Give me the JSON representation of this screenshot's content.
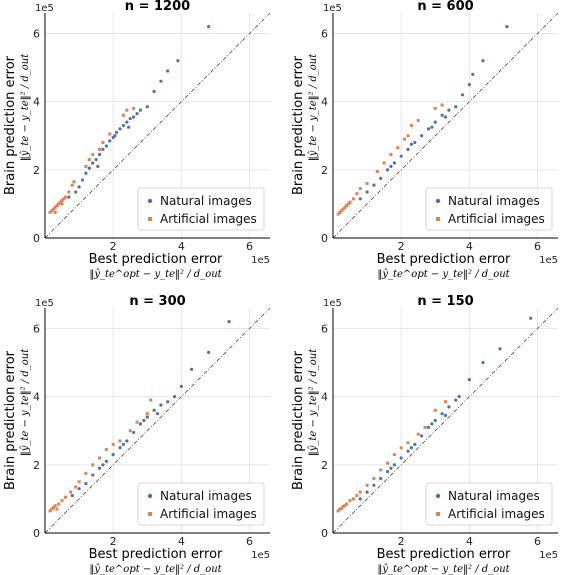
{
  "colors": {
    "natural": "#4c72b0",
    "artificial": "#dd8452",
    "grid": "#e6e6e6",
    "diag": "#444444"
  },
  "chart_data": [
    {
      "type": "scatter",
      "title": "n = 1200",
      "xlabel": "Best prediction error",
      "xformula": "‖ŷ_te^opt − y_te‖² / d_out",
      "ylabel": "Brain prediction error",
      "yformula": "‖ŷ_te − y_te‖² / d_out",
      "x_scale_label": "1e5",
      "y_scale_label": "1e5",
      "xlim": [
        0,
        6.6
      ],
      "ylim": [
        0,
        6.6
      ],
      "xticks": [
        0,
        2,
        4,
        6
      ],
      "yticks": [
        0,
        2,
        4,
        6
      ],
      "grid": true,
      "legend_position": "bottom-right",
      "diagonal": true,
      "series": [
        {
          "name": "Natural images",
          "color_key": "natural",
          "points": [
            [
              0.7,
              1.2
            ],
            [
              0.9,
              1.35
            ],
            [
              1.0,
              1.5
            ],
            [
              1.1,
              1.7
            ],
            [
              1.2,
              1.9
            ],
            [
              1.3,
              2.05
            ],
            [
              1.4,
              2.2
            ],
            [
              1.5,
              2.3
            ],
            [
              1.6,
              2.45
            ],
            [
              1.7,
              2.6
            ],
            [
              1.8,
              2.7
            ],
            [
              1.9,
              2.85
            ],
            [
              2.0,
              2.95
            ],
            [
              2.1,
              3.1
            ],
            [
              2.2,
              3.2
            ],
            [
              2.3,
              3.3
            ],
            [
              2.4,
              3.4
            ],
            [
              2.5,
              3.5
            ],
            [
              2.6,
              3.55
            ],
            [
              2.7,
              3.65
            ],
            [
              2.8,
              3.75
            ],
            [
              3.0,
              3.85
            ],
            [
              3.2,
              4.3
            ],
            [
              3.4,
              4.6
            ],
            [
              3.6,
              4.9
            ],
            [
              3.9,
              5.2
            ],
            [
              4.8,
              6.2
            ],
            [
              1.55,
              2.1
            ],
            [
              2.05,
              3.0
            ],
            [
              2.45,
              3.25
            ]
          ]
        },
        {
          "name": "Artificial images",
          "color_key": "artificial",
          "points": [
            [
              0.15,
              0.75
            ],
            [
              0.2,
              0.8
            ],
            [
              0.25,
              0.85
            ],
            [
              0.3,
              0.9
            ],
            [
              0.35,
              0.95
            ],
            [
              0.4,
              1.0
            ],
            [
              0.45,
              1.05
            ],
            [
              0.5,
              1.1
            ],
            [
              0.55,
              1.15
            ],
            [
              0.6,
              1.2
            ],
            [
              0.7,
              1.35
            ],
            [
              0.8,
              1.55
            ],
            [
              0.85,
              1.65
            ],
            [
              1.2,
              2.1
            ],
            [
              1.3,
              2.3
            ],
            [
              1.4,
              2.45
            ],
            [
              1.6,
              2.6
            ],
            [
              1.7,
              2.8
            ],
            [
              1.9,
              3.05
            ],
            [
              2.3,
              3.6
            ],
            [
              2.4,
              3.75
            ],
            [
              2.6,
              3.8
            ],
            [
              0.3,
              0.75
            ],
            [
              0.5,
              1.0
            ]
          ]
        }
      ]
    },
    {
      "type": "scatter",
      "title": "n = 600",
      "xlabel": "Best prediction error",
      "xformula": "‖ŷ_te^opt − y_te‖² / d_out",
      "ylabel": "Brain prediction error",
      "yformula": "‖ŷ_te − y_te‖² / d_out",
      "x_scale_label": "1e5",
      "y_scale_label": "1e5",
      "xlim": [
        0,
        6.6
      ],
      "ylim": [
        0,
        6.6
      ],
      "xticks": [
        0,
        2,
        4,
        6
      ],
      "yticks": [
        0,
        2,
        4,
        6
      ],
      "grid": true,
      "legend_position": "bottom-right",
      "diagonal": true,
      "series": [
        {
          "name": "Natural images",
          "color_key": "natural",
          "points": [
            [
              0.8,
              1.15
            ],
            [
              1.0,
              1.35
            ],
            [
              1.2,
              1.55
            ],
            [
              1.4,
              1.75
            ],
            [
              1.6,
              2.0
            ],
            [
              1.8,
              2.2
            ],
            [
              2.0,
              2.4
            ],
            [
              2.2,
              2.6
            ],
            [
              2.4,
              2.8
            ],
            [
              2.6,
              3.0
            ],
            [
              2.8,
              3.2
            ],
            [
              3.0,
              3.4
            ],
            [
              3.2,
              3.6
            ],
            [
              3.4,
              3.75
            ],
            [
              3.6,
              3.85
            ],
            [
              3.8,
              4.2
            ],
            [
              4.0,
              4.5
            ],
            [
              4.1,
              4.8
            ],
            [
              4.4,
              5.2
            ],
            [
              5.1,
              6.2
            ],
            [
              1.7,
              2.1
            ],
            [
              2.3,
              2.75
            ],
            [
              2.9,
              3.25
            ],
            [
              3.3,
              3.55
            ]
          ]
        },
        {
          "name": "Artificial images",
          "color_key": "artificial",
          "points": [
            [
              0.15,
              0.7
            ],
            [
              0.2,
              0.75
            ],
            [
              0.25,
              0.8
            ],
            [
              0.3,
              0.85
            ],
            [
              0.35,
              0.9
            ],
            [
              0.4,
              0.95
            ],
            [
              0.5,
              1.05
            ],
            [
              0.6,
              1.15
            ],
            [
              0.7,
              1.3
            ],
            [
              0.8,
              1.45
            ],
            [
              1.0,
              1.6
            ],
            [
              1.3,
              1.95
            ],
            [
              1.5,
              2.2
            ],
            [
              1.7,
              2.45
            ],
            [
              1.9,
              2.65
            ],
            [
              2.1,
              2.9
            ],
            [
              2.2,
              3.0
            ],
            [
              2.3,
              3.3
            ],
            [
              2.5,
              3.45
            ],
            [
              3.0,
              3.8
            ],
            [
              3.2,
              3.9
            ],
            [
              0.45,
              1.0
            ]
          ]
        }
      ]
    },
    {
      "type": "scatter",
      "title": "n = 300",
      "xlabel": "Best prediction error",
      "xformula": "‖ŷ_te^opt − y_te‖² / d_out",
      "ylabel": "Brain prediction error",
      "yformula": "‖ŷ_te − y_te‖² / d_out",
      "x_scale_label": "1e5",
      "y_scale_label": "1e5",
      "xlim": [
        0,
        6.6
      ],
      "ylim": [
        0,
        6.6
      ],
      "xticks": [
        0,
        2,
        4,
        6
      ],
      "yticks": [
        0,
        2,
        4,
        6
      ],
      "grid": true,
      "legend_position": "bottom-right",
      "diagonal": true,
      "series": [
        {
          "name": "Natural images",
          "color_key": "natural",
          "points": [
            [
              0.8,
              1.1
            ],
            [
              1.0,
              1.3
            ],
            [
              1.2,
              1.45
            ],
            [
              1.4,
              1.7
            ],
            [
              1.6,
              1.9
            ],
            [
              1.8,
              2.1
            ],
            [
              2.0,
              2.3
            ],
            [
              2.2,
              2.5
            ],
            [
              2.4,
              2.7
            ],
            [
              2.6,
              2.95
            ],
            [
              2.8,
              3.2
            ],
            [
              3.0,
              3.4
            ],
            [
              3.2,
              3.6
            ],
            [
              3.4,
              3.75
            ],
            [
              3.6,
              3.85
            ],
            [
              3.8,
              4.0
            ],
            [
              4.0,
              4.3
            ],
            [
              4.3,
              4.8
            ],
            [
              4.8,
              5.3
            ],
            [
              5.4,
              6.2
            ],
            [
              1.7,
              2.0
            ],
            [
              2.3,
              2.6
            ],
            [
              2.9,
              3.3
            ],
            [
              3.3,
              3.5
            ]
          ]
        },
        {
          "name": "Artificial images",
          "color_key": "artificial",
          "points": [
            [
              0.15,
              0.65
            ],
            [
              0.2,
              0.7
            ],
            [
              0.25,
              0.75
            ],
            [
              0.3,
              0.8
            ],
            [
              0.4,
              0.85
            ],
            [
              0.5,
              0.95
            ],
            [
              0.6,
              1.05
            ],
            [
              0.75,
              1.2
            ],
            [
              0.9,
              1.35
            ],
            [
              1.0,
              1.5
            ],
            [
              1.2,
              1.75
            ],
            [
              1.4,
              2.0
            ],
            [
              1.6,
              2.2
            ],
            [
              1.8,
              2.45
            ],
            [
              2.0,
              2.6
            ],
            [
              2.2,
              2.7
            ],
            [
              2.5,
              3.0
            ],
            [
              2.7,
              3.25
            ],
            [
              3.0,
              3.5
            ],
            [
              3.1,
              3.9
            ],
            [
              0.35,
              0.7
            ]
          ]
        }
      ]
    },
    {
      "type": "scatter",
      "title": "n = 150",
      "xlabel": "Best prediction error",
      "xformula": "‖ŷ_te^opt − y_te‖² / d_out",
      "ylabel": "Brain prediction error",
      "yformula": "‖ŷ_te − y_te‖² / d_out",
      "x_scale_label": "1e5",
      "y_scale_label": "1e5",
      "xlim": [
        0,
        6.6
      ],
      "ylim": [
        0,
        6.6
      ],
      "xticks": [
        0,
        2,
        4,
        6
      ],
      "yticks": [
        0,
        2,
        4,
        6
      ],
      "grid": true,
      "legend_position": "bottom-right",
      "diagonal": true,
      "series": [
        {
          "name": "Natural images",
          "color_key": "natural",
          "points": [
            [
              0.8,
              1.0
            ],
            [
              1.0,
              1.2
            ],
            [
              1.2,
              1.4
            ],
            [
              1.4,
              1.6
            ],
            [
              1.6,
              1.8
            ],
            [
              1.8,
              2.0
            ],
            [
              2.0,
              2.2
            ],
            [
              2.2,
              2.4
            ],
            [
              2.4,
              2.6
            ],
            [
              2.6,
              2.85
            ],
            [
              2.8,
              3.1
            ],
            [
              3.0,
              3.3
            ],
            [
              3.2,
              3.5
            ],
            [
              3.4,
              3.7
            ],
            [
              3.6,
              3.9
            ],
            [
              3.7,
              4.0
            ],
            [
              4.0,
              4.5
            ],
            [
              4.4,
              5.0
            ],
            [
              4.9,
              5.4
            ],
            [
              5.8,
              6.3
            ],
            [
              1.7,
              1.9
            ],
            [
              2.3,
              2.5
            ],
            [
              2.9,
              3.2
            ],
            [
              3.3,
              3.45
            ]
          ]
        },
        {
          "name": "Artificial images",
          "color_key": "artificial",
          "points": [
            [
              0.15,
              0.65
            ],
            [
              0.2,
              0.7
            ],
            [
              0.25,
              0.72
            ],
            [
              0.3,
              0.78
            ],
            [
              0.4,
              0.85
            ],
            [
              0.5,
              0.95
            ],
            [
              0.6,
              1.0
            ],
            [
              0.7,
              1.1
            ],
            [
              0.8,
              1.2
            ],
            [
              1.0,
              1.4
            ],
            [
              1.2,
              1.6
            ],
            [
              1.4,
              1.85
            ],
            [
              1.6,
              2.05
            ],
            [
              1.8,
              2.3
            ],
            [
              2.0,
              2.5
            ],
            [
              2.2,
              2.65
            ],
            [
              2.5,
              2.9
            ],
            [
              2.7,
              3.1
            ],
            [
              3.0,
              3.6
            ],
            [
              3.3,
              3.85
            ],
            [
              0.35,
              0.8
            ]
          ]
        }
      ]
    }
  ]
}
